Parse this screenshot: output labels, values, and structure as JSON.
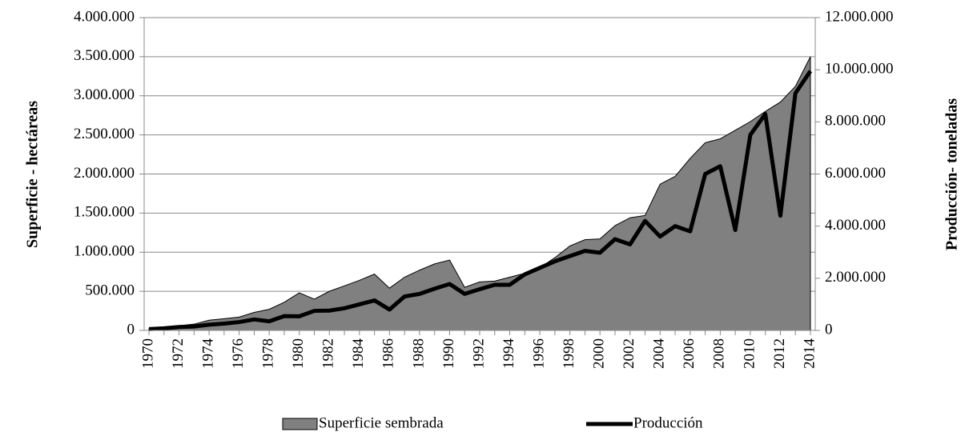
{
  "chart_data": {
    "type": "area-line",
    "ylabel": "Superficie - hectáreas",
    "y2label": "Producción- toneladas",
    "categories": [
      "1970",
      null,
      "1972",
      null,
      "1974",
      null,
      "1976",
      null,
      "1978",
      null,
      "1980",
      null,
      "1982",
      null,
      "1984",
      null,
      "1986",
      null,
      "1988",
      null,
      "1990",
      null,
      "1992",
      null,
      "1994",
      null,
      "1996",
      null,
      "1998",
      null,
      "2000",
      null,
      "2002",
      null,
      "2004",
      null,
      "2006",
      null,
      "2008",
      null,
      "2010",
      null,
      "2012",
      null,
      "2014"
    ],
    "series": [
      {
        "name": "Superficie sembrada",
        "color": "#808080",
        "kind": "area",
        "values": [
          20000,
          40000,
          60000,
          80000,
          130000,
          150000,
          170000,
          230000,
          270000,
          360000,
          480000,
          400000,
          500000,
          570000,
          640000,
          720000,
          540000,
          680000,
          770000,
          850000,
          900000,
          550000,
          620000,
          630000,
          680000,
          730000,
          800000,
          930000,
          1080000,
          1160000,
          1170000,
          1340000,
          1440000,
          1470000,
          1870000,
          1970000,
          2200000,
          2400000,
          2450000,
          2560000,
          2670000,
          2800000,
          2920000,
          3120000,
          3500000
        ]
      },
      {
        "name": "Producción",
        "color": "#000000",
        "kind": "line",
        "axis": "y2",
        "values": [
          50000,
          80000,
          130000,
          150000,
          220000,
          260000,
          320000,
          420000,
          350000,
          550000,
          540000,
          750000,
          760000,
          850000,
          1000000,
          1150000,
          800000,
          1300000,
          1400000,
          1600000,
          1780000,
          1400000,
          1580000,
          1750000,
          1750000,
          2150000,
          2400000,
          2650000,
          2850000,
          3050000,
          2980000,
          3500000,
          3300000,
          4200000,
          3600000,
          4000000,
          3800000,
          6000000,
          6300000,
          3850000,
          7500000,
          8300000,
          4400000,
          9100000,
          9950000
        ]
      }
    ],
    "ylim": [
      0,
      4000000
    ],
    "yticks": [
      0,
      {
        "value": 500000,
        "label": "500.000"
      },
      {
        "value": 1000000,
        "label": "1.000.000"
      },
      {
        "value": 1500000,
        "label": "1.500.000"
      },
      {
        "value": 2000000,
        "label": "2.000.000"
      },
      {
        "value": 2500000,
        "label": "2.500.000"
      },
      {
        "value": 3000000,
        "label": "3.000.000"
      },
      {
        "value": 3500000,
        "label": "3.500.000"
      },
      {
        "value": 4000000,
        "label": "4.000.000"
      }
    ],
    "y2lim": [
      0,
      12000000
    ],
    "y2ticks": [
      0,
      {
        "value": 2000000,
        "label": "2.000.000"
      },
      {
        "value": 4000000,
        "label": "4.000.000"
      },
      {
        "value": 6000000,
        "label": "6.000.000"
      },
      {
        "value": 8000000,
        "label": "8.000.000"
      },
      {
        "value": 10000000,
        "label": "10.000.000"
      },
      {
        "value": 12000000,
        "label": "12.000.000"
      }
    ],
    "grid": true,
    "legend": "bottom"
  }
}
